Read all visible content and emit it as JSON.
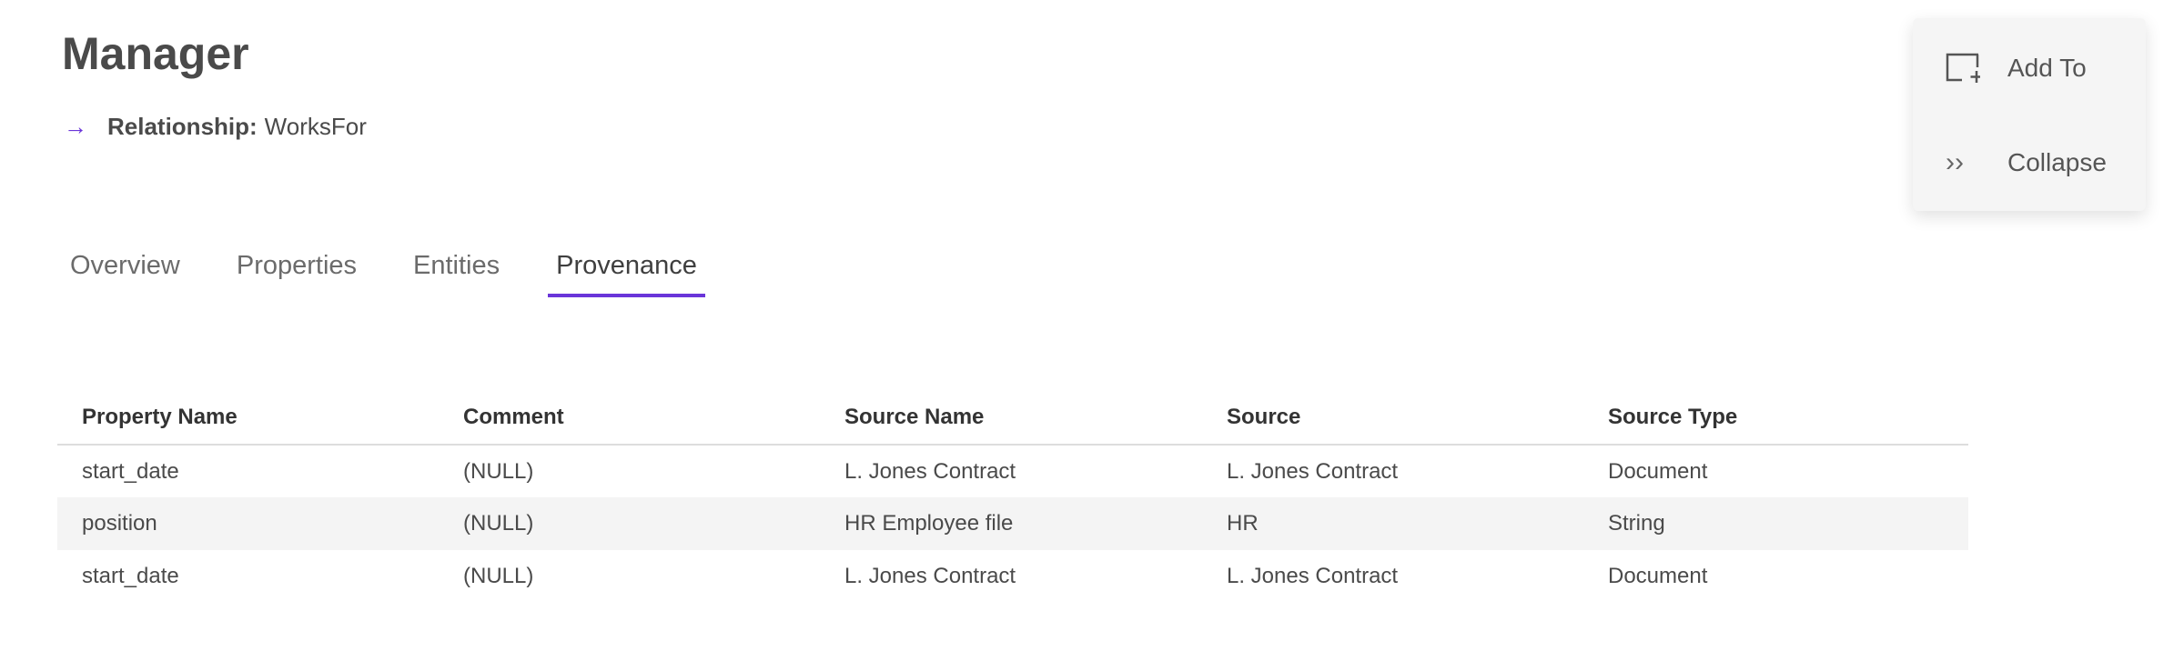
{
  "header": {
    "title": "Manager",
    "relationship_label": "Relationship:",
    "relationship_value": "WorksFor",
    "arrow_icon": "→"
  },
  "tabs": [
    {
      "label": "Overview",
      "active": false
    },
    {
      "label": "Properties",
      "active": false
    },
    {
      "label": "Entities",
      "active": false
    },
    {
      "label": "Provenance",
      "active": true
    }
  ],
  "accent_color": "#6a35d9",
  "table": {
    "columns": [
      "Property Name",
      "Comment",
      "Source Name",
      "Source",
      "Source Type"
    ],
    "rows": [
      [
        "start_date",
        "(NULL)",
        "L. Jones Contract",
        "L. Jones Contract",
        "Document"
      ],
      [
        "position",
        "(NULL)",
        "HR Employee file",
        "HR",
        "String"
      ],
      [
        "start_date",
        "(NULL)",
        "L. Jones Contract",
        "L. Jones Contract",
        "Document"
      ]
    ]
  },
  "panel": {
    "add_to": {
      "label": "Add To",
      "icon": "add-to-icon"
    },
    "collapse": {
      "label": "Collapse",
      "icon": "double-chevron-right-icon",
      "glyph": "››"
    }
  }
}
